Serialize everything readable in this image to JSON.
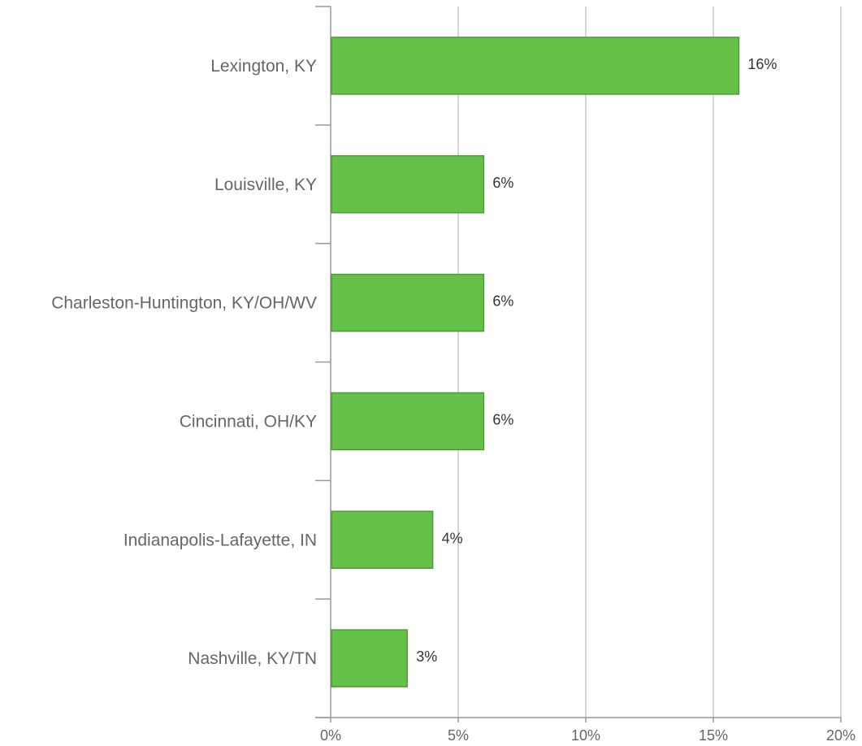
{
  "chart_data": {
    "type": "bar",
    "orientation": "horizontal",
    "categories": [
      "Lexington, KY",
      "Louisville, KY",
      "Charleston-Huntington, KY/OH/WV",
      "Cincinnati, OH/KY",
      "Indianapolis-Lafayette, IN",
      "Nashville, KY/TN"
    ],
    "values": [
      16,
      6,
      6,
      6,
      4,
      3
    ],
    "value_labels": [
      "16%",
      "6%",
      "6%",
      "6%",
      "4%",
      "3%"
    ],
    "x_ticks": [
      "0%",
      "5%",
      "10%",
      "15%",
      "20%"
    ],
    "xlim": [
      0,
      20
    ],
    "grid": true,
    "bar_color": "#66c14a",
    "bar_border_color": "#4f9a38",
    "title": "",
    "xlabel": "",
    "ylabel": ""
  }
}
